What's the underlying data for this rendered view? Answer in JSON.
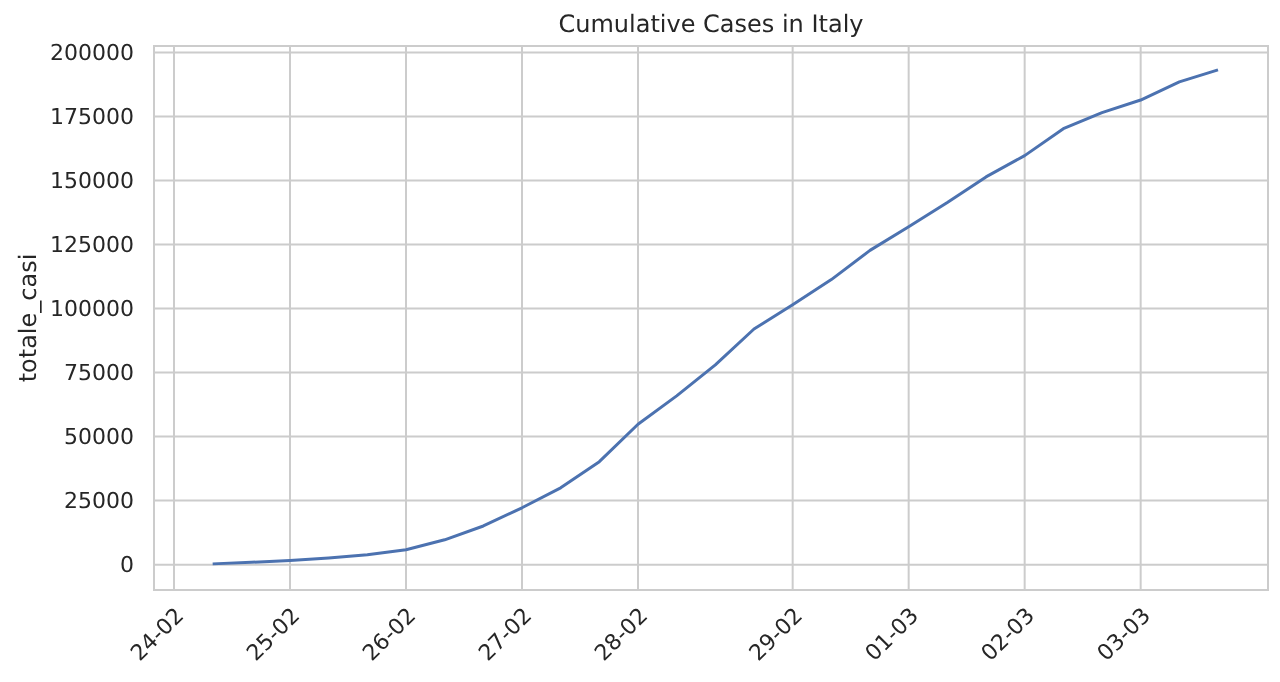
{
  "chart_data": {
    "type": "line",
    "title": "Cumulative Cases in Italy",
    "ylabel": "totale_casi",
    "categories": [
      "24-02",
      null,
      null,
      "25-02",
      null,
      null,
      "26-02",
      null,
      null,
      "27-02",
      null,
      null,
      "28-02",
      null,
      null,
      null,
      "29-02",
      null,
      null,
      "01-03",
      null,
      null,
      "02-03",
      null,
      null,
      "03-03",
      null,
      null
    ],
    "series": [
      {
        "color": "#4c72b0",
        "values": [
          null,
          300,
          900,
          1600,
          2600,
          3900,
          5800,
          9700,
          15100,
          22200,
          30000,
          40200,
          54800,
          65900,
          78000,
          92000,
          101500,
          111300,
          122700,
          131900,
          141400,
          151400,
          159700,
          170200,
          176500,
          181400,
          188500,
          193200
        ]
      }
    ],
    "ylim": [
      -9900,
      202500
    ],
    "yticks": [
      0,
      25000,
      50000,
      75000,
      100000,
      125000,
      150000,
      175000,
      200000
    ],
    "grid": true,
    "marker": "none",
    "line_style": "solid"
  }
}
